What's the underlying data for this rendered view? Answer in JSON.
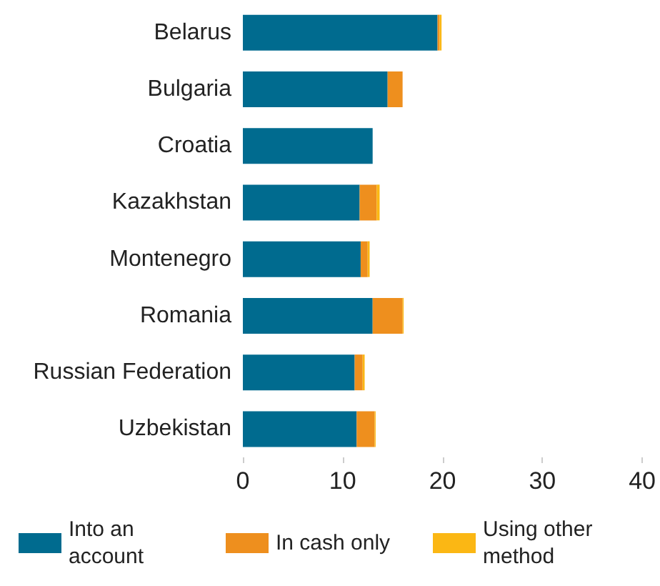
{
  "chart_data": {
    "type": "bar",
    "orientation": "horizontal",
    "stacked": true,
    "categories": [
      "Belarus",
      "Bulgaria",
      "Croatia",
      "Kazakhstan",
      "Montenegro",
      "Romania",
      "Russian Federation",
      "Uzbekistan"
    ],
    "series": [
      {
        "name": "Into an account",
        "color": "#006b8f",
        "values": [
          19.5,
          14.5,
          13.0,
          11.7,
          11.8,
          13.0,
          11.2,
          11.4
        ]
      },
      {
        "name": "In cash only",
        "color": "#ee8f1e",
        "values": [
          0.2,
          1.5,
          0,
          1.7,
          0.7,
          3.0,
          0.8,
          1.8
        ]
      },
      {
        "name": "Using other method",
        "color": "#fbb714",
        "values": [
          0.2,
          0,
          0,
          0.3,
          0.2,
          0.1,
          0.2,
          0.1
        ]
      }
    ],
    "xlim": [
      0,
      40
    ],
    "xticks": [
      0,
      10,
      20,
      30,
      40
    ],
    "grid": false,
    "legend": "bottom"
  }
}
